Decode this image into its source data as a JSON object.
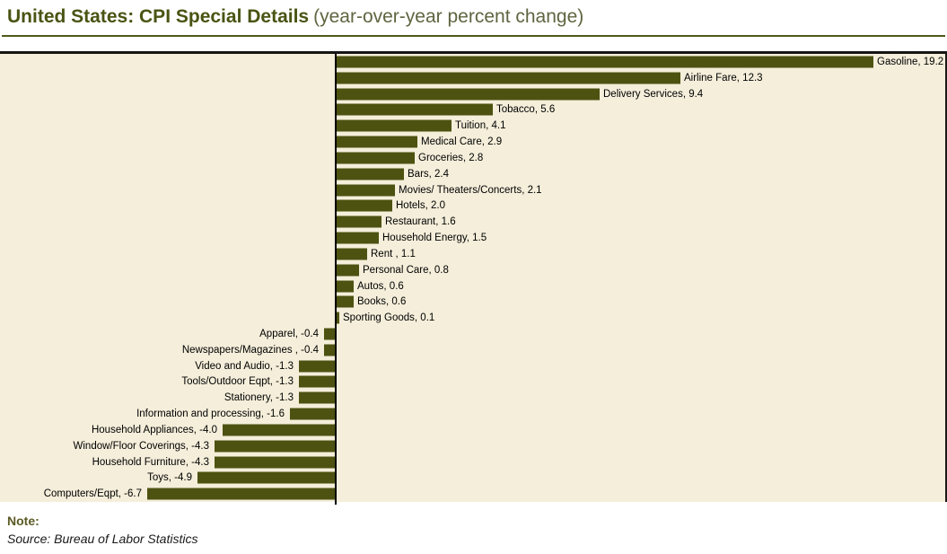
{
  "header": {
    "title": "United States: CPI Special Details",
    "subtitle": "(year-over-year percent change)"
  },
  "footer": {
    "note": "Note:",
    "source": "Source: Bureau of Labor Statistics"
  },
  "colors": {
    "bar": "#4d5211",
    "plot_background": "#f4eeda",
    "title_accent": "#4a5413",
    "axis": "#000000"
  },
  "chart_data": {
    "type": "bar",
    "orientation": "horizontal",
    "title": "United States: CPI Special Details (year-over-year percent change)",
    "xlabel": "year-over-year percent change",
    "ylabel": "",
    "xlim": [
      -12,
      21.9
    ],
    "grid": false,
    "legend": "none",
    "categories": [
      "Gasoline",
      "Airline Fare",
      "Delivery Services",
      "Tobacco",
      "Tuition",
      "Medical Care",
      "Groceries",
      "Bars",
      "Movies/ Theaters/Concerts",
      "Hotels",
      "Restaurant",
      "Household Energy",
      "Rent",
      "Personal Care",
      "Autos",
      "Books",
      "Sporting Goods",
      "Apparel",
      "Newspapers/Magazines",
      "Video and Audio",
      "Tools/Outdoor Eqpt",
      "Stationery",
      "Information and processing",
      "Household Appliances",
      "Window/Floor Coverings",
      "Household Furniture",
      "Toys",
      "Computers/Eqpt"
    ],
    "values": [
      19.2,
      12.3,
      9.4,
      5.6,
      4.1,
      2.9,
      2.8,
      2.4,
      2.1,
      2.0,
      1.6,
      1.5,
      1.1,
      0.8,
      0.6,
      0.6,
      0.1,
      -0.4,
      -0.4,
      -1.3,
      -1.3,
      -1.3,
      -1.6,
      -4.0,
      -4.3,
      -4.3,
      -4.9,
      -6.7
    ],
    "bar_labels": [
      "Gasoline, 19.2",
      "Airline Fare, 12.3",
      "Delivery Services, 9.4",
      "Tobacco, 5.6",
      "Tuition, 4.1",
      "Medical Care, 2.9",
      "Groceries, 2.8",
      "Bars, 2.4",
      "Movies/ Theaters/Concerts, 2.1",
      "Hotels, 2.0",
      "Restaurant, 1.6",
      "Household Energy, 1.5",
      "Rent , 1.1",
      "Personal Care, 0.8",
      "Autos, 0.6",
      "Books, 0.6",
      "Sporting Goods, 0.1",
      "Apparel, -0.4",
      "Newspapers/Magazines , -0.4",
      "Video and Audio, -1.3",
      "Tools/Outdoor Eqpt, -1.3",
      "Stationery, -1.3",
      "Information and processing, -1.6",
      "Household Appliances, -4.0",
      "Window/Floor Coverings, -4.3",
      "Household Furniture, -4.3",
      "Toys, -4.9",
      "Computers/Eqpt, -6.7"
    ],
    "source": "Bureau of Labor Statistics"
  }
}
